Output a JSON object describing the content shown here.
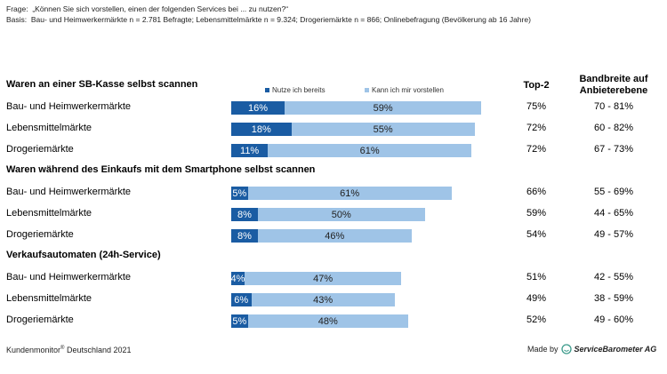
{
  "header": {
    "frage_label": "Frage:",
    "frage": "„Können Sie sich vorstellen, einen der folgenden Services bei ... zu nutzen?“",
    "basis_label": "Basis:",
    "basis": "Bau- und Heimwerkermärkte n = 2.781 Befragte; Lebensmittelmärkte n = 9.324; Drogeriemärkte n = 866; Onlinebefragung (Bevölkerung ab 16 Jahre)"
  },
  "colors": {
    "nutze": "#1a5ca3",
    "kann": "#9fc4e7"
  },
  "chart_data": {
    "type": "bar",
    "orientation": "horizontal",
    "stacked": true,
    "legend": [
      "Nutze ich bereits",
      "Kann ich mir vorstellen"
    ],
    "legend_position": "top",
    "col_top2": "Top-2",
    "col_range": "Bandbreite auf Anbieterebene",
    "groups": [
      {
        "title": "Waren an einer SB-Kasse selbst scannen",
        "rows": [
          {
            "label": "Bau- und Heimwerkermärkte",
            "nutze": 16,
            "kann": 59,
            "nutze_label": "16%",
            "kann_label": "59%",
            "top2": "75%",
            "range": "70 - 81%"
          },
          {
            "label": "Lebensmittelmärkte",
            "nutze": 18,
            "kann": 55,
            "nutze_label": "18%",
            "kann_label": "55%",
            "top2": "72%",
            "range": "60 - 82%"
          },
          {
            "label": "Drogeriemärkte",
            "nutze": 11,
            "kann": 61,
            "nutze_label": "11%",
            "kann_label": "61%",
            "top2": "72%",
            "range": "67 - 73%"
          }
        ]
      },
      {
        "title": "Waren während des Einkaufs mit dem Smartphone selbst scannen",
        "rows": [
          {
            "label": "Bau- und Heimwerkermärkte",
            "nutze": 5,
            "kann": 61,
            "nutze_label": "5%",
            "kann_label": "61%",
            "top2": "66%",
            "range": "55 - 69%"
          },
          {
            "label": "Lebensmittelmärkte",
            "nutze": 8,
            "kann": 50,
            "nutze_label": "8%",
            "kann_label": "50%",
            "top2": "59%",
            "range": "44 - 65%"
          },
          {
            "label": "Drogeriemärkte",
            "nutze": 8,
            "kann": 46,
            "nutze_label": "8%",
            "kann_label": "46%",
            "top2": "54%",
            "range": "49 - 57%"
          }
        ]
      },
      {
        "title": "Verkaufsautomaten (24h-Service)",
        "rows": [
          {
            "label": "Bau- und Heimwerkermärkte",
            "nutze": 4,
            "kann": 47,
            "nutze_label": "4%",
            "kann_label": "47%",
            "top2": "51%",
            "range": "42 - 55%"
          },
          {
            "label": "Lebensmittelmärkte",
            "nutze": 6,
            "kann": 43,
            "nutze_label": "6%",
            "kann_label": "43%",
            "top2": "49%",
            "range": "38 - 59%"
          },
          {
            "label": "Drogeriemärkte",
            "nutze": 5,
            "kann": 48,
            "nutze_label": "5%",
            "kann_label": "48%",
            "top2": "52%",
            "range": "49 - 60%"
          }
        ]
      }
    ]
  },
  "footer": {
    "source": "Kundenmonitor",
    "reg": "®",
    "source_rest": " Deutschland 2021",
    "made_by": "Made by",
    "brand": "ServiceBarometer AG",
    "logo_icon": "smiley-logo-icon"
  }
}
